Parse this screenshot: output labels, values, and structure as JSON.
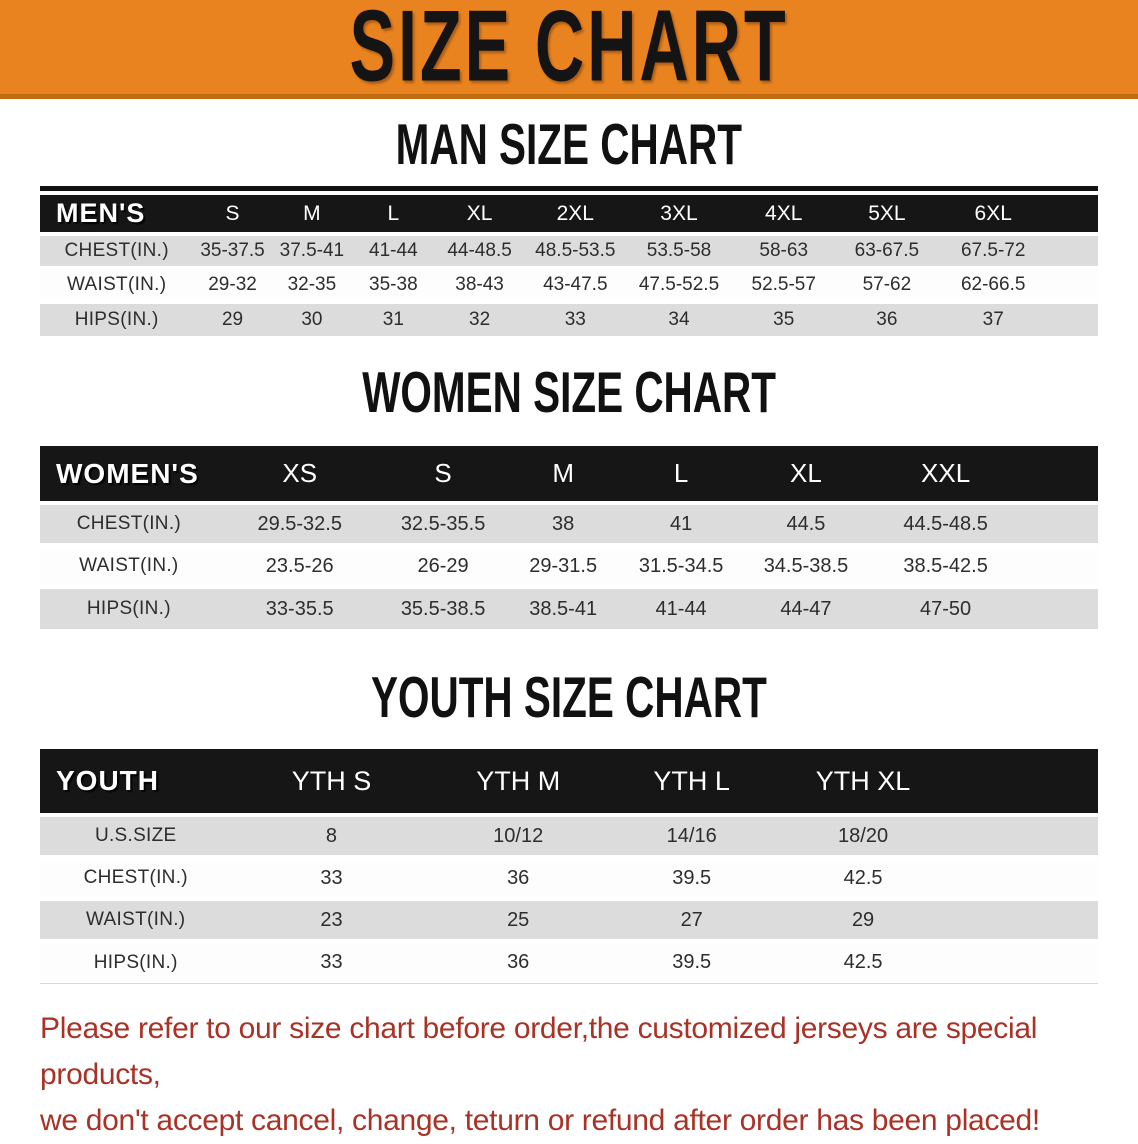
{
  "banner": {
    "title": "SIZE CHART"
  },
  "colors": {
    "banner_bg": "#E8831F",
    "banner_edge": "#C06A12",
    "header_black": "#161616",
    "row_gray": "#DCDCDC",
    "footer_red": "#A93226"
  },
  "sections": [
    {
      "heading": "MAN SIZE CHART",
      "table": {
        "header_label": "MEN'S",
        "columns": [
          "S",
          "M",
          "L",
          "XL",
          "2XL",
          "3XL",
          "4XL",
          "5XL",
          "6XL"
        ],
        "rows": [
          {
            "label": "CHEST(IN.)",
            "values": [
              "35-37.5",
              "37.5-41",
              "41-44",
              "44-48.5",
              "48.5-53.5",
              "53.5-58",
              "58-63",
              "63-67.5",
              "67.5-72"
            ]
          },
          {
            "label": "WAIST(IN.)",
            "values": [
              "29-32",
              "32-35",
              "35-38",
              "38-43",
              "43-47.5",
              "47.5-52.5",
              "52.5-57",
              "57-62",
              "62-66.5"
            ]
          },
          {
            "label": "HIPS(IN.)",
            "values": [
              "29",
              "30",
              "31",
              "32",
              "33",
              "34",
              "35",
              "36",
              "37"
            ]
          }
        ]
      }
    },
    {
      "heading": "WOMEN SIZE CHART",
      "table": {
        "header_label": "WOMEN'S",
        "columns": [
          "XS",
          "S",
          "M",
          "L",
          "XL",
          "XXL"
        ],
        "rows": [
          {
            "label": "CHEST(IN.)",
            "values": [
              "29.5-32.5",
              "32.5-35.5",
              "38",
              "41",
              "44.5",
              "44.5-48.5"
            ]
          },
          {
            "label": "WAIST(IN.)",
            "values": [
              "23.5-26",
              "26-29",
              "29-31.5",
              "31.5-34.5",
              "34.5-38.5",
              "38.5-42.5"
            ]
          },
          {
            "label": "HIPS(IN.)",
            "values": [
              "33-35.5",
              "35.5-38.5",
              "38.5-41",
              "41-44",
              "44-47",
              "47-50"
            ]
          }
        ]
      }
    },
    {
      "heading": "YOUTH SIZE CHART",
      "table": {
        "header_label": "YOUTH",
        "columns": [
          "YTH S",
          "YTH M",
          "YTH L",
          "YTH XL"
        ],
        "rows": [
          {
            "label": "U.S.SIZE",
            "values": [
              "8",
              "10/12",
              "14/16",
              "18/20"
            ]
          },
          {
            "label": "CHEST(IN.)",
            "values": [
              "33",
              "36",
              "39.5",
              "42.5"
            ]
          },
          {
            "label": "WAIST(IN.)",
            "values": [
              "23",
              "25",
              "27",
              "29"
            ]
          },
          {
            "label": "HIPS(IN.)",
            "values": [
              "33",
              "36",
              "39.5",
              "42.5"
            ]
          }
        ]
      }
    }
  ],
  "footer": {
    "line1": "Please refer to our size chart before order,the customized jerseys are special products,",
    "line2": "we don't accept cancel, change, teturn or refund after order has been placed!"
  },
  "chart_data": {
    "type": "table",
    "tables": [
      {
        "title": "MAN SIZE CHART",
        "columns": [
          "MEN'S",
          "S",
          "M",
          "L",
          "XL",
          "2XL",
          "3XL",
          "4XL",
          "5XL",
          "6XL"
        ],
        "rows": [
          [
            "CHEST(IN.)",
            "35-37.5",
            "37.5-41",
            "41-44",
            "44-48.5",
            "48.5-53.5",
            "53.5-58",
            "58-63",
            "63-67.5",
            "67.5-72"
          ],
          [
            "WAIST(IN.)",
            "29-32",
            "32-35",
            "35-38",
            "38-43",
            "43-47.5",
            "47.5-52.5",
            "52.5-57",
            "57-62",
            "62-66.5"
          ],
          [
            "HIPS(IN.)",
            "29",
            "30",
            "31",
            "32",
            "33",
            "34",
            "35",
            "36",
            "37"
          ]
        ]
      },
      {
        "title": "WOMEN SIZE CHART",
        "columns": [
          "WOMEN'S",
          "XS",
          "S",
          "M",
          "L",
          "XL",
          "XXL"
        ],
        "rows": [
          [
            "CHEST(IN.)",
            "29.5-32.5",
            "32.5-35.5",
            "38",
            "41",
            "44.5",
            "44.5-48.5"
          ],
          [
            "WAIST(IN.)",
            "23.5-26",
            "26-29",
            "29-31.5",
            "31.5-34.5",
            "34.5-38.5",
            "38.5-42.5"
          ],
          [
            "HIPS(IN.)",
            "33-35.5",
            "35.5-38.5",
            "38.5-41",
            "41-44",
            "44-47",
            "47-50"
          ]
        ]
      },
      {
        "title": "YOUTH SIZE CHART",
        "columns": [
          "YOUTH",
          "YTH S",
          "YTH M",
          "YTH L",
          "YTH XL"
        ],
        "rows": [
          [
            "U.S.SIZE",
            "8",
            "10/12",
            "14/16",
            "18/20"
          ],
          [
            "CHEST(IN.)",
            "33",
            "36",
            "39.5",
            "42.5"
          ],
          [
            "WAIST(IN.)",
            "23",
            "25",
            "27",
            "29"
          ],
          [
            "HIPS(IN.)",
            "33",
            "36",
            "39.5",
            "42.5"
          ]
        ]
      }
    ]
  }
}
